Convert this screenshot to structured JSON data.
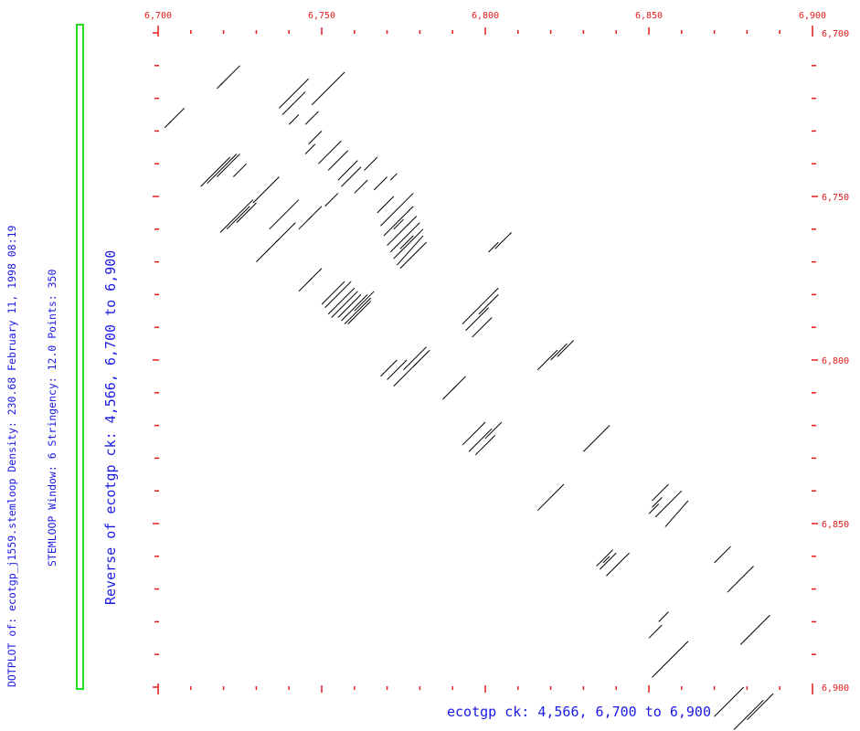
{
  "header": {
    "line1": "DOTPLOT of: ecotgp_j1559.stemloop  Density: 230.68  February 11, 1998 08:19",
    "line2": "STEMLOOP  Window: 6  Stringency: 12.0  Points: 350"
  },
  "chart_data": {
    "type": "scatter",
    "title": "",
    "xlabel": "ecotgp ck: 4,566, 6,700 to 6,900",
    "ylabel": "Reverse of ecotgp ck: 4,566, 6,700 to 6,900",
    "xlim": [
      6700,
      6900
    ],
    "ylim": [
      6700,
      6900
    ],
    "y_inverted": true,
    "x_tick_labels": [
      "6,700",
      "6,750",
      "6,800",
      "6,850",
      "6,900"
    ],
    "y_tick_labels": [
      "6,700",
      "6,750",
      "6,800",
      "6,850",
      "6,900"
    ],
    "x_ticks": [
      6700,
      6750,
      6800,
      6850,
      6900
    ],
    "y_ticks": [
      6700,
      6750,
      6800,
      6850,
      6900
    ],
    "minor_tick_step": 10,
    "grid": false,
    "colors": {
      "axis": "#e61a1a",
      "text": "#1a1ae6",
      "segments": "#000000",
      "legend_bar": "#22dd22"
    },
    "segments": [
      [
        6719,
        6716,
        6725,
        6710
      ],
      [
        6718,
        6717,
        6720,
        6715
      ],
      [
        6703,
        6728,
        6708,
        6723
      ],
      [
        6702,
        6729,
        6704,
        6727
      ],
      [
        6737,
        6723,
        6746,
        6714
      ],
      [
        6738,
        6725,
        6745,
        6718
      ],
      [
        6740,
        6728,
        6743,
        6725
      ],
      [
        6747,
        6722,
        6757,
        6712
      ],
      [
        6745,
        6728,
        6749,
        6724
      ],
      [
        6713,
        6747,
        6722,
        6738
      ],
      [
        6715,
        6746,
        6724,
        6737
      ],
      [
        6718,
        6744,
        6725,
        6737
      ],
      [
        6723,
        6744,
        6727,
        6740
      ],
      [
        6746,
        6734,
        6750,
        6730
      ],
      [
        6745,
        6737,
        6748,
        6734
      ],
      [
        6749,
        6740,
        6756,
        6733
      ],
      [
        6752,
        6742,
        6758,
        6736
      ],
      [
        6755,
        6745,
        6761,
        6739
      ],
      [
        6756,
        6747,
        6762,
        6741
      ],
      [
        6763,
        6742,
        6767,
        6738
      ],
      [
        6760,
        6749,
        6764,
        6745
      ],
      [
        6719,
        6761,
        6729,
        6751
      ],
      [
        6721,
        6760,
        6728,
        6753
      ],
      [
        6729,
        6752,
        6737,
        6744
      ],
      [
        6724,
        6758,
        6730,
        6752
      ],
      [
        6734,
        6760,
        6743,
        6751
      ],
      [
        6736,
        6764,
        6742,
        6758
      ],
      [
        6743,
        6760,
        6747,
        6756
      ],
      [
        6746,
        6757,
        6750,
        6753
      ],
      [
        6751,
        6753,
        6755,
        6749
      ],
      [
        6733,
        6767,
        6737,
        6763
      ],
      [
        6730,
        6770,
        6734,
        6766
      ],
      [
        6766,
        6748,
        6770,
        6744
      ],
      [
        6767,
        6755,
        6772,
        6750
      ],
      [
        6768,
        6759,
        6778,
        6749
      ],
      [
        6769,
        6762,
        6778,
        6753
      ],
      [
        6770,
        6765,
        6779,
        6756
      ],
      [
        6771,
        6767,
        6780,
        6758
      ],
      [
        6772,
        6769,
        6781,
        6760
      ],
      [
        6773,
        6771,
        6781,
        6762
      ],
      [
        6774,
        6772,
        6782,
        6764
      ],
      [
        6774,
        6766,
        6778,
        6762
      ],
      [
        6772,
        6760,
        6775,
        6757
      ],
      [
        6771,
        6745,
        6773,
        6743
      ],
      [
        6746,
        6776,
        6750,
        6772
      ],
      [
        6750,
        6783,
        6757,
        6776
      ],
      [
        6751,
        6784,
        6759,
        6776
      ],
      [
        6752,
        6786,
        6760,
        6778
      ],
      [
        6753,
        6787,
        6761,
        6779
      ],
      [
        6755,
        6787,
        6762,
        6780
      ],
      [
        6756,
        6788,
        6764,
        6780
      ],
      [
        6757,
        6789,
        6765,
        6781
      ],
      [
        6758,
        6789,
        6765,
        6782
      ],
      [
        6760,
        6785,
        6766,
        6779
      ],
      [
        6743,
        6779,
        6747,
        6775
      ],
      [
        6793,
        6789,
        6800,
        6782
      ],
      [
        6794,
        6791,
        6801,
        6784
      ],
      [
        6796,
        6793,
        6802,
        6787
      ],
      [
        6798,
        6786,
        6804,
        6780
      ],
      [
        6800,
        6782,
        6804,
        6778
      ],
      [
        6803,
        6766,
        6808,
        6761
      ],
      [
        6801,
        6767,
        6804,
        6764
      ],
      [
        6768,
        6805,
        6773,
        6800
      ],
      [
        6770,
        6806,
        6776,
        6800
      ],
      [
        6772,
        6808,
        6779,
        6801
      ],
      [
        6775,
        6803,
        6782,
        6796
      ],
      [
        6778,
        6802,
        6783,
        6797
      ],
      [
        6816,
        6803,
        6822,
        6797
      ],
      [
        6820,
        6800,
        6825,
        6795
      ],
      [
        6822,
        6799,
        6827,
        6794
      ],
      [
        6787,
        6812,
        6791,
        6808
      ],
      [
        6790,
        6809,
        6794,
        6805
      ],
      [
        6793,
        6826,
        6800,
        6819
      ],
      [
        6795,
        6828,
        6802,
        6821
      ],
      [
        6797,
        6829,
        6803,
        6823
      ],
      [
        6800,
        6824,
        6805,
        6819
      ],
      [
        6830,
        6828,
        6838,
        6820
      ],
      [
        6816,
        6846,
        6824,
        6838
      ],
      [
        6851,
        6843,
        6856,
        6838
      ],
      [
        6852,
        6848,
        6860,
        6840
      ],
      [
        6855,
        6851,
        6862,
        6843
      ],
      [
        6851,
        6845,
        6854,
        6842
      ],
      [
        6850,
        6847,
        6853,
        6844
      ],
      [
        6834,
        6863,
        6839,
        6858
      ],
      [
        6835,
        6864,
        6840,
        6859
      ],
      [
        6837,
        6866,
        6844,
        6859
      ],
      [
        6836,
        6862,
        6838,
        6860
      ],
      [
        6870,
        6862,
        6875,
        6857
      ],
      [
        6874,
        6871,
        6882,
        6863
      ],
      [
        6850,
        6885,
        6854,
        6881
      ],
      [
        6853,
        6880,
        6856,
        6877
      ],
      [
        6851,
        6897,
        6862,
        6886
      ],
      [
        6878,
        6887,
        6887,
        6878
      ],
      [
        6870,
        6909,
        6879,
        6900
      ],
      [
        6876,
        6913,
        6885,
        6904
      ],
      [
        6880,
        6910,
        6888,
        6902
      ]
    ]
  }
}
